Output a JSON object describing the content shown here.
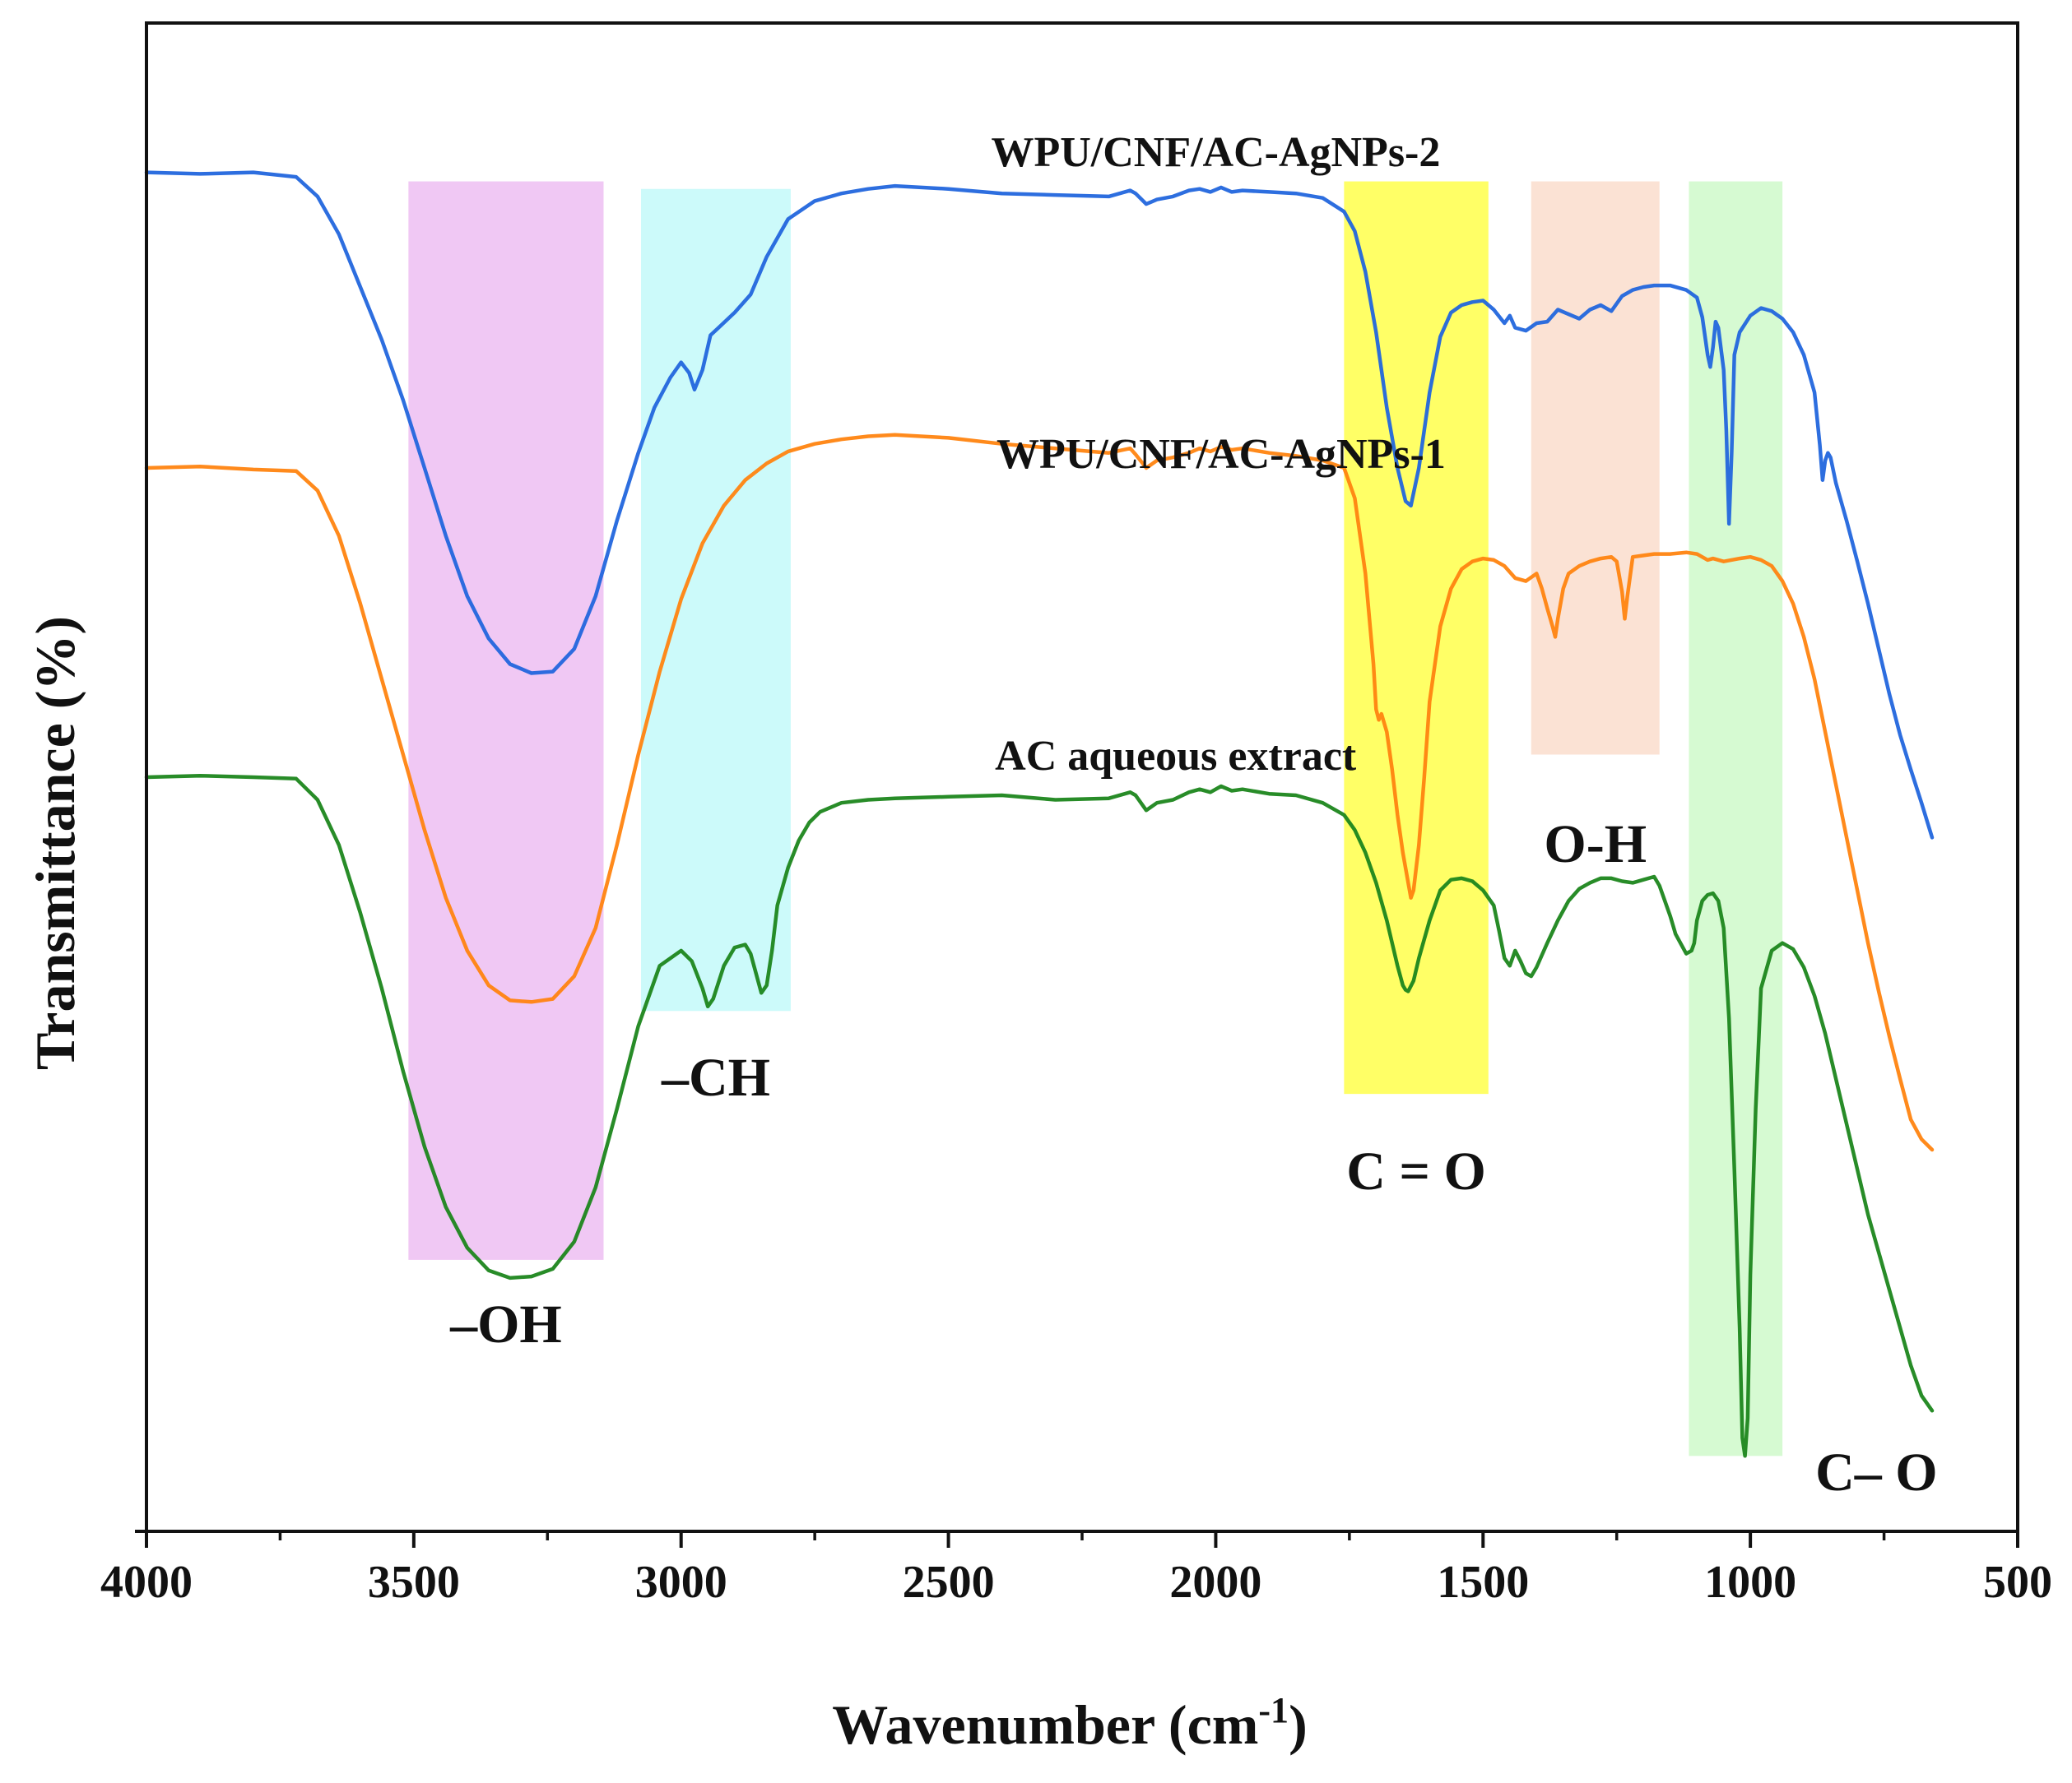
{
  "chart_data": {
    "type": "line",
    "title": "",
    "xlabel": "Wavenumber (cm",
    "xlabel_sup": "-1",
    "xlabel_close": ")",
    "ylabel": "Transmittance (%)",
    "xlim": [
      4000,
      500
    ],
    "ylim": [
      0,
      100
    ],
    "x_ticks": [
      4000,
      3500,
      3000,
      2500,
      2000,
      1500,
      1000,
      500
    ],
    "x_tick_labels": [
      "4000",
      "3500",
      "3000",
      "2500",
      "2000",
      "1500",
      "1000",
      "500"
    ],
    "y_ticks_shown": false,
    "grid": false,
    "bands": [
      {
        "label": "–OH",
        "from": 3510,
        "to": 3145,
        "color": "#f0c8f4",
        "ymin": 18,
        "ymax": 89.5
      },
      {
        "label": "–CH",
        "from": 3075,
        "to": 2795,
        "color": "#ccfafa",
        "ymin": 34.5,
        "ymax": 89
      },
      {
        "label": "C = O",
        "from": 1760,
        "to": 1490,
        "color": "#ffff66",
        "ymin": 29,
        "ymax": 89.5
      },
      {
        "label": "O-H",
        "from": 1410,
        "to": 1170,
        "color": "#fbe2d4",
        "ymin": 51.5,
        "ymax": 89.5
      },
      {
        "label": "C– O",
        "from": 1115,
        "to": 940,
        "color": "#d6fad2",
        "ymin": 5,
        "ymax": 89.5
      }
    ],
    "series": [
      {
        "name": "WPU/CNF/AC-AgNPs-2",
        "color": "#2266dd",
        "x": [
          4000,
          3900,
          3800,
          3720,
          3680,
          3640,
          3600,
          3560,
          3520,
          3480,
          3440,
          3400,
          3360,
          3320,
          3280,
          3240,
          3200,
          3160,
          3120,
          3080,
          3050,
          3020,
          3000,
          2985,
          2975,
          2960,
          2945,
          2930,
          2900,
          2870,
          2840,
          2800,
          2750,
          2700,
          2650,
          2600,
          2500,
          2400,
          2300,
          2200,
          2160,
          2150,
          2130,
          2110,
          2080,
          2050,
          2030,
          2010,
          1990,
          1970,
          1950,
          1900,
          1850,
          1800,
          1760,
          1740,
          1720,
          1700,
          1680,
          1660,
          1645,
          1635,
          1620,
          1600,
          1580,
          1560,
          1540,
          1520,
          1500,
          1480,
          1460,
          1450,
          1440,
          1420,
          1400,
          1380,
          1360,
          1340,
          1320,
          1300,
          1280,
          1260,
          1240,
          1220,
          1200,
          1180,
          1150,
          1120,
          1100,
          1090,
          1080,
          1075,
          1070,
          1065,
          1060,
          1050,
          1045,
          1040,
          1035,
          1030,
          1020,
          1000,
          980,
          960,
          940,
          920,
          900,
          880,
          870,
          865,
          860,
          855,
          850,
          840,
          820,
          800,
          780,
          760,
          740,
          720,
          700,
          680,
          660
        ],
        "y": [
          90.1,
          90.0,
          90.1,
          89.8,
          88.5,
          86,
          82.5,
          79,
          75,
          70.5,
          66,
          62,
          59.2,
          57.5,
          56.9,
          57.0,
          58.5,
          62,
          67,
          71.5,
          74.5,
          76.5,
          77.5,
          76.8,
          75.7,
          77,
          79.3,
          79.8,
          80.8,
          82,
          84.5,
          87,
          88.2,
          88.7,
          89,
          89.2,
          89.0,
          88.7,
          88.6,
          88.5,
          88.9,
          88.7,
          88.0,
          88.3,
          88.5,
          88.9,
          89.0,
          88.8,
          89.1,
          88.8,
          88.9,
          88.8,
          88.7,
          88.4,
          87.5,
          86.2,
          83.5,
          79.5,
          74.5,
          70.5,
          68.3,
          68.0,
          70.5,
          75.5,
          79.2,
          80.8,
          81.3,
          81.5,
          81.6,
          81.0,
          80.1,
          80.6,
          79.8,
          79.6,
          80.1,
          80.2,
          81.0,
          80.7,
          80.4,
          81.0,
          81.3,
          80.9,
          81.9,
          82.3,
          82.5,
          82.6,
          82.6,
          82.3,
          81.8,
          80.5,
          78.0,
          77.2,
          78.5,
          80.2,
          79.8,
          77.0,
          73.0,
          66.8,
          71.5,
          78.0,
          79.5,
          80.6,
          81.1,
          80.9,
          80.4,
          79.5,
          78.0,
          75.5,
          72.0,
          69.7,
          71.0,
          71.5,
          71.2,
          69.5,
          67.0,
          64.3,
          61.5,
          58.5,
          55.5,
          52.8,
          50.5,
          48.3,
          46.0
        ]
      },
      {
        "name": "WPU/CNF/AC-AgNPs-1",
        "color": "#ff8410",
        "x": [
          4000,
          3900,
          3800,
          3720,
          3680,
          3640,
          3600,
          3560,
          3520,
          3480,
          3440,
          3400,
          3360,
          3320,
          3280,
          3240,
          3200,
          3160,
          3120,
          3080,
          3040,
          3000,
          2960,
          2920,
          2880,
          2840,
          2800,
          2750,
          2700,
          2650,
          2600,
          2500,
          2400,
          2300,
          2200,
          2160,
          2150,
          2130,
          2110,
          2080,
          2050,
          2030,
          2010,
          1990,
          1970,
          1950,
          1900,
          1850,
          1800,
          1760,
          1740,
          1720,
          1705,
          1700,
          1695,
          1690,
          1680,
          1670,
          1660,
          1650,
          1640,
          1635,
          1630,
          1620,
          1610,
          1600,
          1580,
          1560,
          1540,
          1520,
          1500,
          1480,
          1460,
          1440,
          1420,
          1400,
          1390,
          1380,
          1370,
          1365,
          1360,
          1350,
          1340,
          1320,
          1300,
          1280,
          1260,
          1250,
          1240,
          1235,
          1230,
          1220,
          1200,
          1180,
          1150,
          1120,
          1100,
          1080,
          1070,
          1050,
          1020,
          1000,
          980,
          960,
          940,
          920,
          900,
          880,
          860,
          840,
          820,
          800,
          780,
          760,
          740,
          720,
          700,
          680,
          660
        ],
        "y": [
          70.5,
          70.6,
          70.4,
          70.3,
          69.0,
          66.0,
          61.5,
          56.5,
          51.5,
          46.5,
          42.0,
          38.5,
          36.2,
          35.2,
          35.1,
          35.3,
          36.8,
          40.0,
          45.5,
          51.5,
          57.0,
          61.8,
          65.5,
          68.0,
          69.7,
          70.8,
          71.6,
          72.1,
          72.4,
          72.6,
          72.7,
          72.5,
          72.1,
          71.8,
          71.5,
          71.8,
          71.4,
          70.5,
          71.0,
          71.2,
          71.5,
          71.8,
          71.6,
          71.9,
          71.7,
          71.8,
          71.5,
          71.3,
          71.0,
          70.5,
          68.5,
          63.5,
          57.5,
          54.5,
          53.8,
          54.2,
          53.0,
          50.5,
          47.5,
          45.0,
          43.0,
          42.0,
          42.5,
          45.5,
          50.0,
          55.0,
          60.0,
          62.5,
          63.8,
          64.3,
          64.5,
          64.4,
          64.0,
          63.2,
          63.0,
          63.5,
          62.5,
          61.2,
          60.0,
          59.3,
          60.5,
          62.5,
          63.5,
          64.0,
          64.3,
          64.5,
          64.6,
          64.3,
          62.3,
          60.5,
          62.0,
          64.6,
          64.7,
          64.8,
          64.8,
          64.9,
          64.8,
          64.4,
          64.5,
          64.3,
          64.5,
          64.6,
          64.4,
          64.0,
          63.0,
          61.5,
          59.3,
          56.5,
          53.0,
          49.5,
          46.0,
          42.5,
          39.0,
          35.8,
          32.8,
          30.0,
          27.3,
          26.0,
          25.3
        ]
      },
      {
        "name": "AC aqueous extract",
        "color": "#1c861c",
        "x": [
          4000,
          3900,
          3800,
          3720,
          3680,
          3640,
          3600,
          3560,
          3520,
          3480,
          3440,
          3400,
          3360,
          3320,
          3280,
          3240,
          3200,
          3160,
          3120,
          3080,
          3040,
          3000,
          2980,
          2960,
          2950,
          2940,
          2920,
          2900,
          2880,
          2870,
          2860,
          2850,
          2840,
          2830,
          2820,
          2800,
          2780,
          2760,
          2740,
          2700,
          2650,
          2600,
          2500,
          2400,
          2300,
          2200,
          2160,
          2150,
          2130,
          2110,
          2080,
          2050,
          2030,
          2010,
          1990,
          1970,
          1950,
          1900,
          1850,
          1800,
          1760,
          1740,
          1720,
          1700,
          1680,
          1660,
          1650,
          1645,
          1640,
          1630,
          1620,
          1600,
          1580,
          1560,
          1540,
          1520,
          1500,
          1480,
          1470,
          1460,
          1450,
          1440,
          1430,
          1420,
          1410,
          1400,
          1390,
          1380,
          1360,
          1340,
          1320,
          1300,
          1280,
          1260,
          1240,
          1220,
          1200,
          1180,
          1170,
          1160,
          1150,
          1140,
          1120,
          1110,
          1105,
          1100,
          1090,
          1080,
          1070,
          1060,
          1050,
          1040,
          1030,
          1020,
          1015,
          1010,
          1005,
          1000,
          990,
          980,
          960,
          940,
          920,
          900,
          880,
          860,
          840,
          820,
          800,
          780,
          760,
          740,
          720,
          700,
          680,
          660
        ],
        "y": [
          50.0,
          50.1,
          50.0,
          49.9,
          48.5,
          45.5,
          41.0,
          36.0,
          30.5,
          25.5,
          21.5,
          18.8,
          17.3,
          16.8,
          16.9,
          17.4,
          19.2,
          22.8,
          28.0,
          33.5,
          37.5,
          38.5,
          37.8,
          36.0,
          34.8,
          35.3,
          37.5,
          38.7,
          38.9,
          38.3,
          37.0,
          35.7,
          36.2,
          38.5,
          41.5,
          44.0,
          45.8,
          47.0,
          47.7,
          48.3,
          48.5,
          48.6,
          48.7,
          48.8,
          48.5,
          48.6,
          49.0,
          48.8,
          47.8,
          48.3,
          48.5,
          49.0,
          49.2,
          49.0,
          49.4,
          49.1,
          49.2,
          48.9,
          48.8,
          48.3,
          47.5,
          46.5,
          45.0,
          43.0,
          40.5,
          37.5,
          36.2,
          35.9,
          35.8,
          36.5,
          38.0,
          40.5,
          42.5,
          43.2,
          43.3,
          43.1,
          42.5,
          41.5,
          39.8,
          38.0,
          37.5,
          38.5,
          37.8,
          37.0,
          36.8,
          37.4,
          38.2,
          39.0,
          40.5,
          41.8,
          42.6,
          43.0,
          43.3,
          43.3,
          43.1,
          43.0,
          43.2,
          43.4,
          42.8,
          41.8,
          40.8,
          39.6,
          38.3,
          38.5,
          39.0,
          40.5,
          41.8,
          42.2,
          42.3,
          41.8,
          40.0,
          34.0,
          24.0,
          13.5,
          6.2,
          5.0,
          7.5,
          17.0,
          28.0,
          36.0,
          38.5,
          39.0,
          38.6,
          37.4,
          35.5,
          33.0,
          30.0,
          27.0,
          24.0,
          21.0,
          18.5,
          16.0,
          13.5,
          11.0,
          9.0,
          8.0
        ]
      }
    ],
    "series_labels": [
      {
        "text": "WPU/CNF/AC-AgNPs-2",
        "at_x": 2000,
        "at_y": 90.5
      },
      {
        "text": "WPU/CNF/AC-AgNPs-1",
        "at_x": 1990,
        "at_y": 70.5
      },
      {
        "text": "AC aqueous extract",
        "at_x": 2075,
        "at_y": 50.5
      }
    ]
  }
}
